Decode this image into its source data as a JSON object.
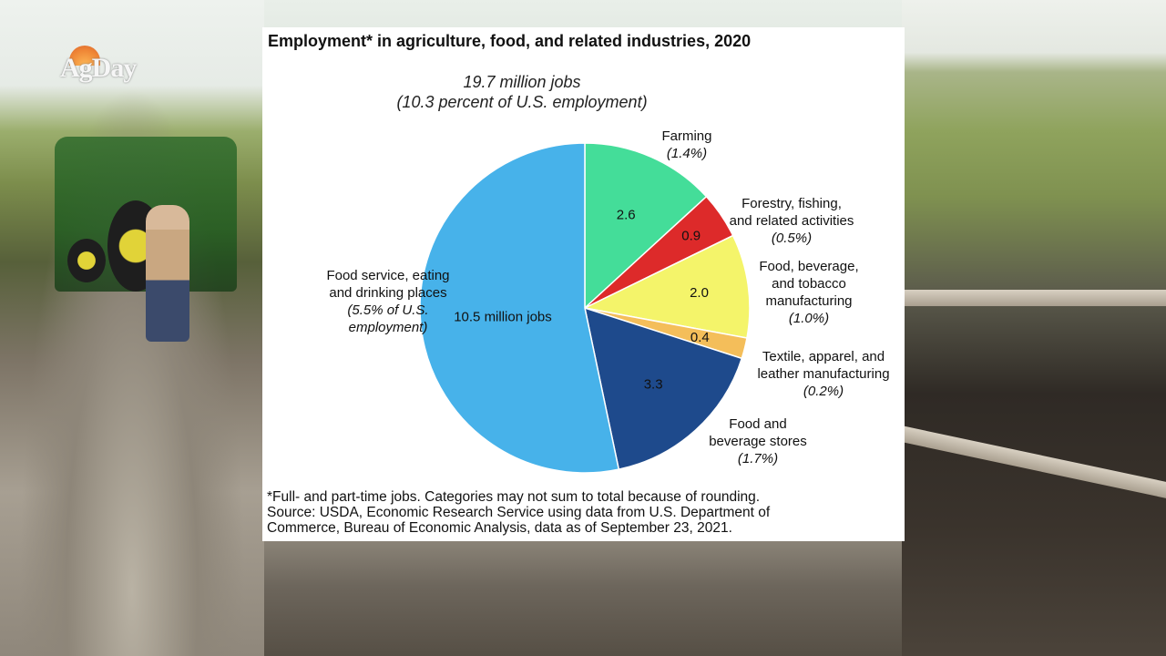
{
  "brand": {
    "logo_text": "AgDay"
  },
  "chart_data": {
    "type": "pie",
    "title": "Employment* in agriculture, food, and related industries, 2020",
    "total_line1": "19.7 million jobs",
    "total_line2": "(10.3 percent of U.S. employment)",
    "slices": [
      {
        "name": "Farming",
        "label_lines": [
          "Farming"
        ],
        "pct": "(1.4%)",
        "value": 2.6,
        "value_label": "2.6",
        "color": "#44dd99"
      },
      {
        "name": "Forestry, fishing, and related activities",
        "label_lines": [
          "Forestry, fishing,",
          "and related activities"
        ],
        "pct": "(0.5%)",
        "value": 0.9,
        "value_label": "0.9",
        "color": "#dd2a2a"
      },
      {
        "name": "Food, beverage, and tobacco manufacturing",
        "label_lines": [
          "Food, beverage,",
          "and tobacco",
          "manufacturing"
        ],
        "pct": "(1.0%)",
        "value": 2.0,
        "value_label": "2.0",
        "color": "#f4f46a"
      },
      {
        "name": "Textile, apparel, and leather manufacturing",
        "label_lines": [
          "Textile, apparel, and",
          "leather manufacturing"
        ],
        "pct": "(0.2%)",
        "value": 0.4,
        "value_label": "0.4",
        "color": "#f4be5a"
      },
      {
        "name": "Food and beverage stores",
        "label_lines": [
          "Food and",
          "beverage stores"
        ],
        "pct": "(1.7%)",
        "value": 3.3,
        "value_label": "3.3",
        "color": "#1e4a8c"
      },
      {
        "name": "Food service, eating and drinking places",
        "label_lines": [
          "Food service, eating",
          "and drinking places"
        ],
        "pct": "(5.5% of U.S.",
        "pct2": "employment)",
        "value": 10.5,
        "value_label": "10.5 million jobs",
        "color": "#47b2ea"
      }
    ],
    "footnote": [
      "*Full- and part-time jobs. Categories may not sum to total because of rounding.",
      "Source: USDA, Economic Research Service using data from U.S. Department of",
      "Commerce, Bureau of Economic Analysis, data as of September 23, 2021."
    ]
  }
}
